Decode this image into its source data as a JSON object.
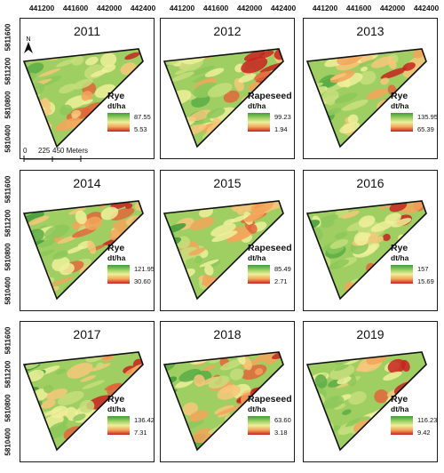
{
  "x_ticks": [
    "441200",
    "441600",
    "442000",
    "442400"
  ],
  "y_ticks": [
    "5811600",
    "5811200",
    "5810800",
    "5810400"
  ],
  "legend_unit": "dt/ha",
  "panels": [
    {
      "year": "2011",
      "crop": "Rye",
      "max": "87.55",
      "min": "5.53"
    },
    {
      "year": "2012",
      "crop": "Rapeseed",
      "max": "99.23",
      "min": "1.94"
    },
    {
      "year": "2013",
      "crop": "Rye",
      "max": "135.95",
      "min": "65.39"
    },
    {
      "year": "2014",
      "crop": "Rye",
      "max": "121.95",
      "min": "30.60"
    },
    {
      "year": "2015",
      "crop": "Rapeseed",
      "max": "85.49",
      "min": "2.71"
    },
    {
      "year": "2016",
      "crop": "Rye",
      "max": "157",
      "min": "15.69"
    },
    {
      "year": "2017",
      "crop": "Rye",
      "max": "136.42",
      "min": "7.31"
    },
    {
      "year": "2018",
      "crop": "Rapeseed",
      "max": "63.60",
      "min": "3.18"
    },
    {
      "year": "2019",
      "crop": "Rye",
      "max": "116.23",
      "min": "9.42"
    }
  ],
  "north_label": "N",
  "scale_labels": [
    "0",
    "225",
    "450 Meters"
  ],
  "colors": {
    "high": "#3e9b3a",
    "mid": "#eef09a",
    "low": "#c8231e"
  }
}
